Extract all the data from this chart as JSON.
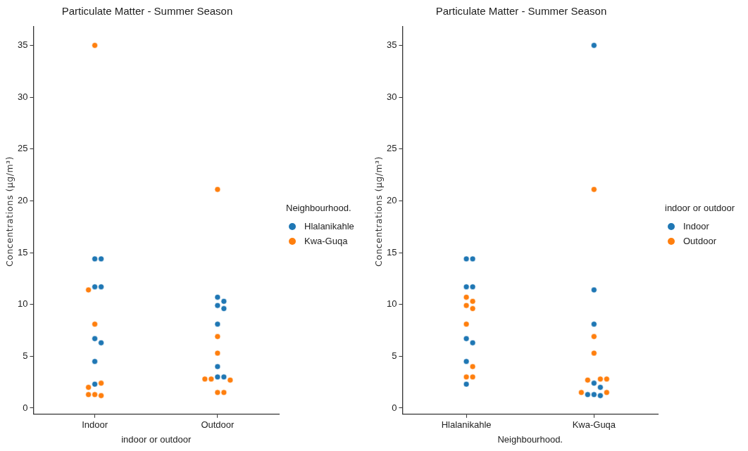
{
  "chart_data": [
    {
      "type": "scatter",
      "title": "Particulate Matter - Summer Season",
      "xlabel": "indoor or outdoor",
      "ylabel": "Concentrations (μg/m³)",
      "categories": [
        "Indoor",
        "Outdoor"
      ],
      "ylim": [
        -0.6,
        36.8
      ],
      "yticks": [
        0,
        5,
        10,
        15,
        20,
        25,
        30,
        35
      ],
      "grid": false,
      "legend": "right",
      "legend_title": "Neighbourhood.",
      "marker": "circle",
      "series": [
        {
          "name": "Hlalanikahle",
          "color": "#1f77b4",
          "x": [
            "Indoor",
            "Indoor",
            "Indoor",
            "Indoor",
            "Indoor",
            "Indoor",
            "Indoor",
            "Indoor",
            "Outdoor",
            "Outdoor",
            "Outdoor",
            "Outdoor",
            "Outdoor",
            "Outdoor",
            "Outdoor",
            "Outdoor"
          ],
          "values": [
            14.4,
            14.4,
            11.7,
            11.7,
            6.7,
            6.3,
            4.5,
            2.3,
            10.7,
            10.3,
            9.9,
            9.6,
            8.1,
            4.0,
            3.0,
            3.0
          ]
        },
        {
          "name": "Kwa-Guqa",
          "color": "#ff7f0e",
          "x": [
            "Indoor",
            "Indoor",
            "Indoor",
            "Indoor",
            "Indoor",
            "Indoor",
            "Indoor",
            "Indoor",
            "Outdoor",
            "Outdoor",
            "Outdoor",
            "Outdoor",
            "Outdoor",
            "Outdoor",
            "Outdoor",
            "Outdoor"
          ],
          "values": [
            35,
            11.4,
            8.1,
            2.4,
            2.0,
            1.3,
            1.2,
            1.3,
            21.1,
            6.9,
            5.3,
            2.8,
            2.7,
            2.8,
            1.5,
            1.5
          ]
        }
      ]
    },
    {
      "type": "scatter",
      "title": "Particulate Matter - Summer Season",
      "xlabel": "Neighbourhood.",
      "ylabel": "Concentrations (μg/m³)",
      "categories": [
        "Hlalanikahle",
        "Kwa-Guqa"
      ],
      "ylim": [
        -0.6,
        36.8
      ],
      "yticks": [
        0,
        5,
        10,
        15,
        20,
        25,
        30,
        35
      ],
      "grid": false,
      "legend": "right",
      "legend_title": "indoor or outdoor",
      "marker": "circle",
      "series": [
        {
          "name": "Indoor",
          "color": "#1f77b4",
          "x": [
            "Hlalanikahle",
            "Hlalanikahle",
            "Hlalanikahle",
            "Hlalanikahle",
            "Hlalanikahle",
            "Hlalanikahle",
            "Hlalanikahle",
            "Hlalanikahle",
            "Kwa-Guqa",
            "Kwa-Guqa",
            "Kwa-Guqa",
            "Kwa-Guqa",
            "Kwa-Guqa",
            "Kwa-Guqa",
            "Kwa-Guqa",
            "Kwa-Guqa"
          ],
          "values": [
            14.4,
            14.4,
            11.7,
            11.7,
            6.7,
            6.3,
            4.5,
            2.3,
            35,
            11.4,
            8.1,
            2.4,
            2.0,
            1.3,
            1.2,
            1.3
          ]
        },
        {
          "name": "Outdoor",
          "color": "#ff7f0e",
          "x": [
            "Hlalanikahle",
            "Hlalanikahle",
            "Hlalanikahle",
            "Hlalanikahle",
            "Hlalanikahle",
            "Hlalanikahle",
            "Hlalanikahle",
            "Hlalanikahle",
            "Kwa-Guqa",
            "Kwa-Guqa",
            "Kwa-Guqa",
            "Kwa-Guqa",
            "Kwa-Guqa",
            "Kwa-Guqa",
            "Kwa-Guqa",
            "Kwa-Guqa"
          ],
          "values": [
            10.7,
            10.3,
            9.9,
            9.6,
            8.1,
            4.0,
            3.0,
            3.0,
            21.1,
            6.9,
            5.3,
            2.8,
            2.7,
            2.8,
            1.5,
            1.5
          ]
        }
      ]
    }
  ]
}
